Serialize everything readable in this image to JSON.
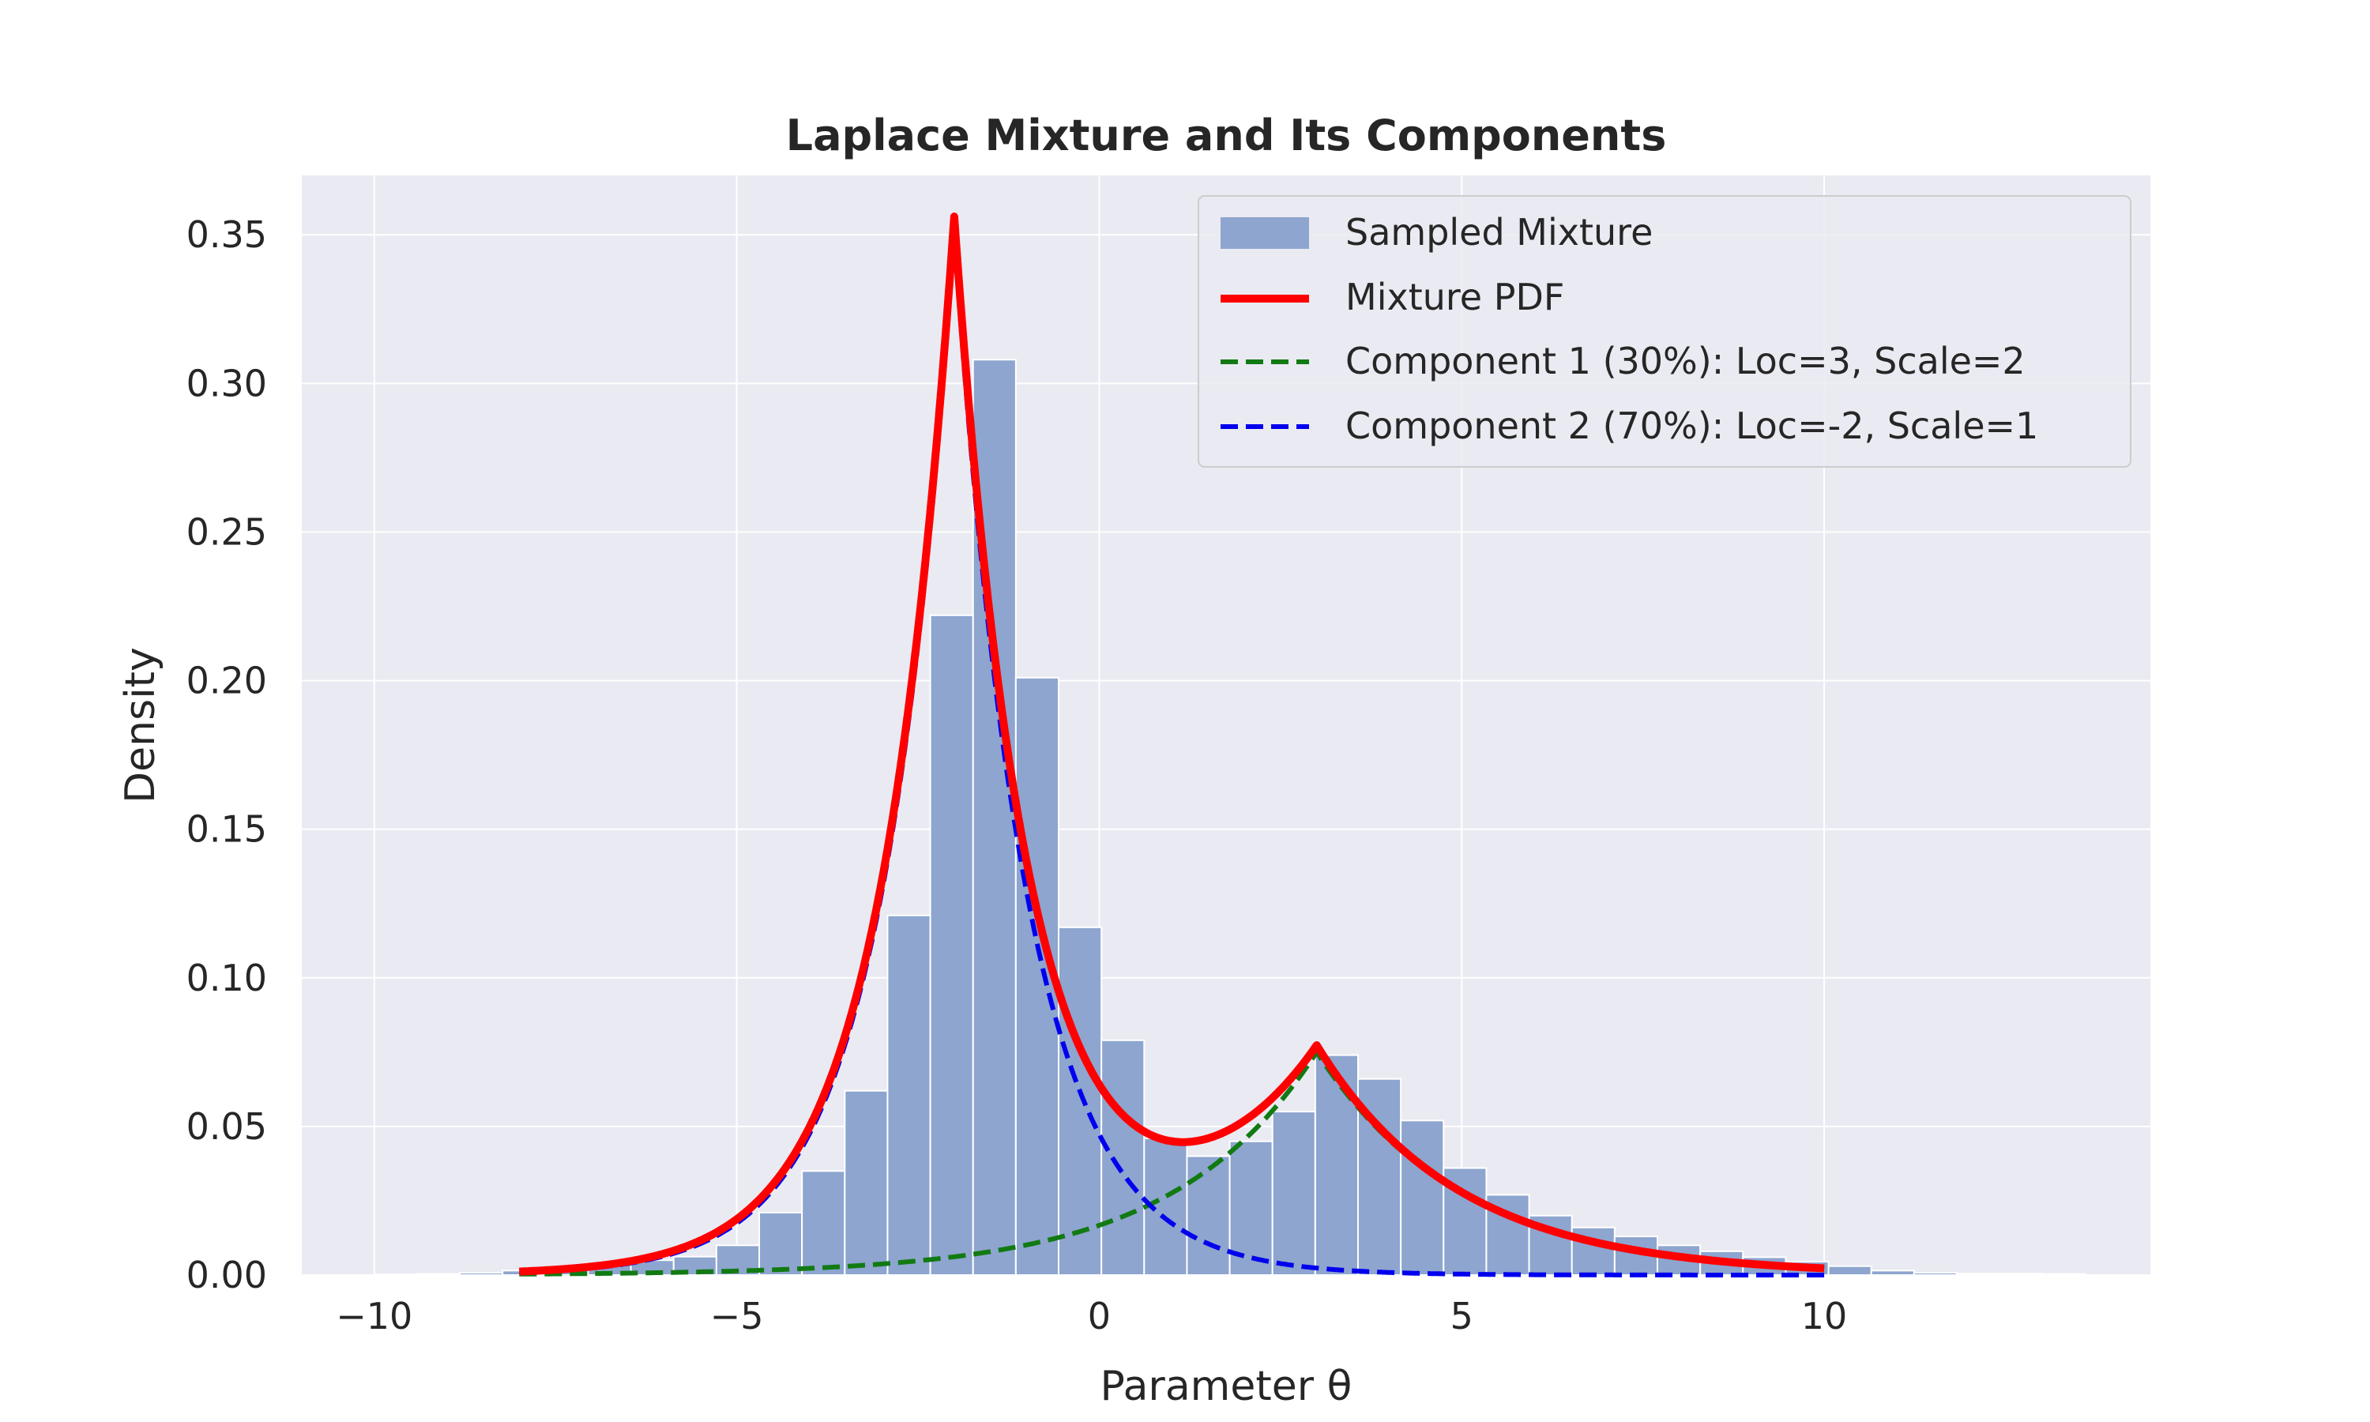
{
  "chart_data": {
    "type": "bar",
    "title": "Laplace Mixture and Its Components",
    "xlabel": "Parameter θ",
    "ylabel": "Density",
    "xlim": [
      -11,
      14.5
    ],
    "ylim": [
      0,
      0.37
    ],
    "xticks": [
      -10,
      -5,
      0,
      5,
      10
    ],
    "xtick_labels": [
      "−10",
      "−5",
      "0",
      "5",
      "10"
    ],
    "yticks": [
      0,
      0.05,
      0.1,
      0.15,
      0.2,
      0.25,
      0.3,
      0.35
    ],
    "ytick_labels": [
      "0.00",
      "0.05",
      "0.10",
      "0.15",
      "0.20",
      "0.25",
      "0.30",
      "0.35"
    ],
    "grid": true,
    "legend_position": "top-right",
    "histogram": {
      "name": "Sampled Mixture",
      "color": "#8da5cf",
      "bin_edges": [
        -10.0,
        -9.41,
        -8.82,
        -8.23,
        -7.64,
        -7.05,
        -6.46,
        -5.87,
        -5.28,
        -4.69,
        -4.1,
        -3.51,
        -2.92,
        -2.33,
        -1.74,
        -1.15,
        -0.56,
        0.03,
        0.62,
        1.21,
        1.8,
        2.39,
        2.98,
        3.57,
        4.16,
        4.75,
        5.34,
        5.93,
        6.52,
        7.11,
        7.7,
        8.29,
        8.88,
        9.47,
        10.06,
        10.65,
        11.24,
        11.83,
        12.42,
        13.01,
        13.6
      ],
      "values": [
        0.0003,
        0.0004,
        0.0008,
        0.0015,
        0.002,
        0.0035,
        0.005,
        0.0062,
        0.01,
        0.021,
        0.035,
        0.062,
        0.121,
        0.222,
        0.308,
        0.201,
        0.117,
        0.079,
        0.046,
        0.04,
        0.045,
        0.055,
        0.074,
        0.066,
        0.052,
        0.036,
        0.027,
        0.02,
        0.016,
        0.013,
        0.01,
        0.008,
        0.006,
        0.0045,
        0.003,
        0.0015,
        0.0008,
        0.0005,
        0.0005,
        0.0004
      ]
    },
    "series": [
      {
        "name": "Mixture PDF",
        "color": "#ff0000",
        "style": "solid",
        "weight": 1.0,
        "loc": 3,
        "scale": 2,
        "weight2": 0.7,
        "loc2": -2,
        "scale2": 1,
        "x_range": [
          -8,
          10
        ],
        "kind": "mixture"
      },
      {
        "name": "Component 1 (30%): Loc=3, Scale=2",
        "color": "#127a12",
        "style": "dashed",
        "weight": 0.3,
        "loc": 3,
        "scale": 2,
        "x_range": [
          -8,
          10
        ],
        "kind": "laplace"
      },
      {
        "name": "Component 2 (70%): Loc=-2, Scale=1",
        "color": "#0000ee",
        "style": "dashed",
        "weight": 0.7,
        "loc": -2,
        "scale": 1,
        "x_range": [
          -8,
          10
        ],
        "kind": "laplace"
      }
    ]
  }
}
